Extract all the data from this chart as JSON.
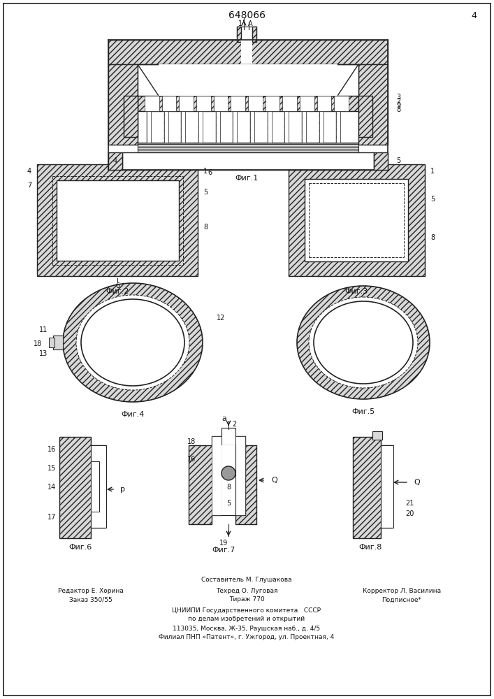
{
  "title": "648066",
  "page_number": "4",
  "background": "#ffffff",
  "lc": "#222222",
  "hatch_fc": "#d8d8d8",
  "footer": [
    [
      "Составитель М. Глушакова",
      353,
      830
    ],
    [
      "Редактор Е. Хорина",
      130,
      845
    ],
    [
      "Техред О. Луговая",
      353,
      845
    ],
    [
      "Корректор Л. Василина",
      575,
      845
    ],
    [
      "Заказ 350/55",
      130,
      858
    ],
    [
      "Тираж 770",
      353,
      858
    ],
    [
      "Подписное*",
      575,
      858
    ],
    [
      "ЦНИИПИ Государственного комитета   СССР",
      353,
      873
    ],
    [
      "по делам изобретений и открытий",
      353,
      886
    ],
    [
      "113035, Москва, Ж-35, Раушская наб., д. 4/5",
      353,
      899
    ],
    [
      "Филиал ПНП «Патент», г. Ужгород, ул. Проектная, 4",
      353,
      912
    ]
  ]
}
